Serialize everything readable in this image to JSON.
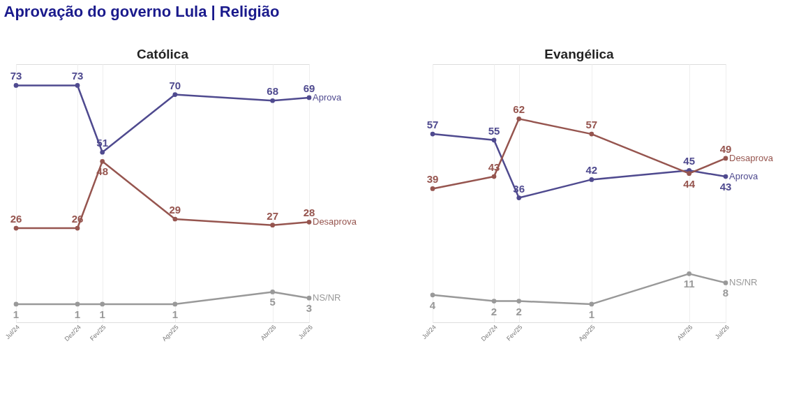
{
  "chart_data": [
    {
      "type": "line",
      "title": "Católica",
      "annotations": [
        "Aprovação do governo Lula | Religião"
      ],
      "x": [
        "2024-07",
        "2024-12",
        "2025-02",
        "2025-08",
        "2026-04",
        "2026-07"
      ],
      "xlim": [
        "2024-07",
        "2026-07"
      ],
      "xticks": [
        {
          "value": "2024-07",
          "label": "Jul/24"
        },
        {
          "value": "2024-12",
          "label": "Dez/24"
        },
        {
          "value": "2025-02",
          "label": "Fev/25"
        },
        {
          "value": "2025-08",
          "label": "Ago/25"
        },
        {
          "value": "2026-04",
          "label": "Abr/26"
        },
        {
          "value": "2026-07",
          "label": "Jul/26"
        }
      ],
      "ylim": [
        -5,
        80
      ],
      "tick_labels": "x",
      "grid": "x",
      "legend": false,
      "marker": "circle",
      "data_labels": true,
      "series": [
        {
          "name": "Aprova",
          "color": "#4f4a8f",
          "values": [
            73,
            73,
            51,
            70,
            68,
            69
          ]
        },
        {
          "name": "Desaprova",
          "color": "#96554f",
          "values": [
            26,
            26,
            48,
            29,
            27,
            28
          ]
        },
        {
          "name": "NS/NR",
          "color": "#999999",
          "values": [
            1,
            1,
            1,
            1,
            5,
            3
          ]
        }
      ]
    },
    {
      "type": "line",
      "title": "Evangélica",
      "x": [
        "2024-07",
        "2024-12",
        "2025-02",
        "2025-08",
        "2026-04",
        "2026-07"
      ],
      "xlim": [
        "2024-07",
        "2026-07"
      ],
      "xticks": [
        {
          "value": "2024-07",
          "label": "Jul/24"
        },
        {
          "value": "2024-12",
          "label": "Dez/24"
        },
        {
          "value": "2025-02",
          "label": "Fev/25"
        },
        {
          "value": "2025-08",
          "label": "Ago/25"
        },
        {
          "value": "2026-04",
          "label": "Abr/26"
        },
        {
          "value": "2026-07",
          "label": "Jul/26"
        }
      ],
      "ylim": [
        -5,
        80
      ],
      "tick_labels": "x",
      "grid": "x",
      "legend": false,
      "marker": "circle",
      "data_labels": true,
      "series": [
        {
          "name": "Aprova",
          "color": "#4f4a8f",
          "values": [
            57,
            55,
            36,
            42,
            45,
            43
          ]
        },
        {
          "name": "Desaprova",
          "color": "#96554f",
          "values": [
            39,
            43,
            62,
            57,
            44,
            49
          ]
        },
        {
          "name": "NS/NR",
          "color": "#999999",
          "values": [
            4,
            2,
            2,
            1,
            11,
            8
          ]
        }
      ]
    }
  ]
}
